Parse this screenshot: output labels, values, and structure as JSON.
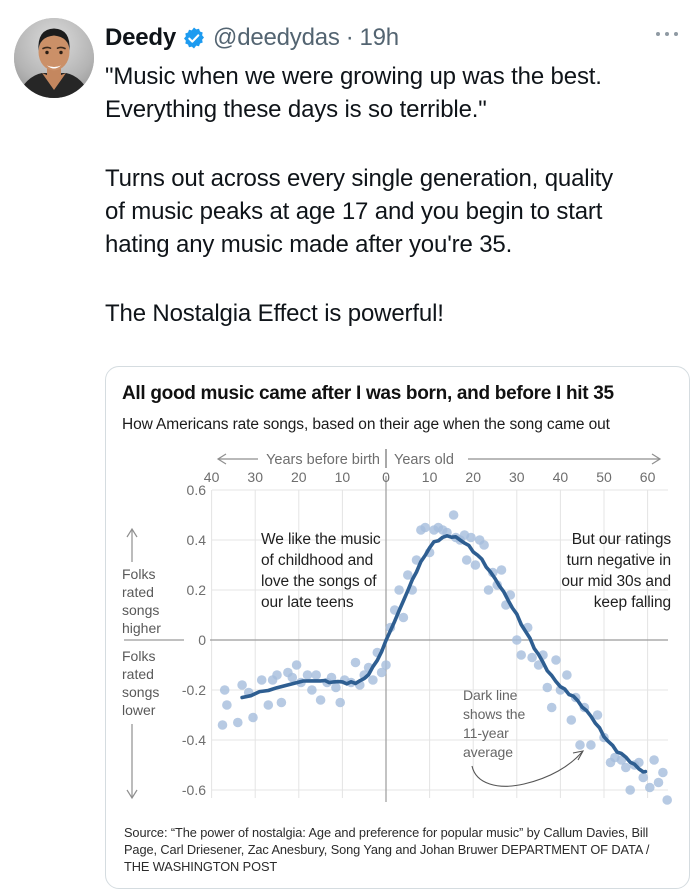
{
  "tweet": {
    "author": "Deedy",
    "handle": "@deedydas",
    "separator": "·",
    "time": "19h",
    "paragraphs": [
      "\"Music when we were growing up was the best.\nEverything these days is so terrible.\"",
      "Turns out across every single generation, quality\nof music peaks at age 17 and you begin to start\nhating any music made after you're 35.",
      "The Nostalgia Effect is powerful!"
    ]
  },
  "icons": {
    "verified": "verified-badge",
    "more": "more-horizontal-dots"
  },
  "colors": {
    "verified_blue": "#1d9bf0",
    "meta_gray": "#536471",
    "card_border": "#d5dce0",
    "dot_blue": "#a5bddc",
    "line_blue": "#2e5e91",
    "grid_gray": "#e4e4e4",
    "axis_gray": "#9b9b9b",
    "tick_text_gray": "#6e6e6e"
  },
  "chart_data": {
    "type": "scatter",
    "title": "All good music came after I was born, and before I hit 35",
    "subtitle": "How Americans rate songs, based on their age when the song came out",
    "x_axis": {
      "left_label": "Years before birth",
      "right_label": "Years old",
      "tick_values": [
        -40,
        -30,
        -20,
        -10,
        0,
        10,
        20,
        30,
        40,
        50,
        60
      ],
      "tick_labels": [
        "40",
        "30",
        "20",
        "10",
        "0",
        "10",
        "20",
        "30",
        "40",
        "50",
        "60"
      ]
    },
    "y_axis": {
      "tick_values": [
        0.6,
        0.4,
        0.2,
        0,
        -0.2,
        -0.4,
        -0.6
      ],
      "tick_labels": [
        "0.6",
        "0.4",
        "0.2",
        "0",
        "-0.2",
        "-0.4",
        "-0.6"
      ]
    },
    "xlim": [
      -45,
      66
    ],
    "ylim": [
      -0.7,
      0.65
    ],
    "grid": true,
    "legend": "none",
    "annotations": {
      "left": "We like the music\nof childhood and\nlove the songs of\nour late teens",
      "right": "But our ratings\nturn negative in\nour mid 30s and\nkeep falling",
      "dark_line": "Dark line\nshows the\n11-year\naverage",
      "folks_higher": "Folks\nrated\nsongs\nhigher",
      "folks_lower": "Folks\nrated\nsongs\nlower"
    },
    "series": [
      {
        "name": "individual year ratings",
        "type": "scatter",
        "points": [
          [
            -37.5,
            -0.34
          ],
          [
            -37,
            -0.2
          ],
          [
            -36.5,
            -0.26
          ],
          [
            -34,
            -0.33
          ],
          [
            -33,
            -0.18
          ],
          [
            -31.5,
            -0.21
          ],
          [
            -30.5,
            -0.31
          ],
          [
            -28.5,
            -0.16
          ],
          [
            -27,
            -0.26
          ],
          [
            -26,
            -0.16
          ],
          [
            -25,
            -0.14
          ],
          [
            -24,
            -0.25
          ],
          [
            -22.5,
            -0.13
          ],
          [
            -21.5,
            -0.15
          ],
          [
            -20.5,
            -0.1
          ],
          [
            -19.5,
            -0.17
          ],
          [
            -18,
            -0.14
          ],
          [
            -17,
            -0.2
          ],
          [
            -16,
            -0.14
          ],
          [
            -15,
            -0.24
          ],
          [
            -13.5,
            -0.17
          ],
          [
            -12.5,
            -0.15
          ],
          [
            -11.5,
            -0.19
          ],
          [
            -10.5,
            -0.25
          ],
          [
            -9.5,
            -0.16
          ],
          [
            -8,
            -0.17
          ],
          [
            -7,
            -0.09
          ],
          [
            -6,
            -0.18
          ],
          [
            -5,
            -0.14
          ],
          [
            -4,
            -0.11
          ],
          [
            -3,
            -0.16
          ],
          [
            -2,
            -0.05
          ],
          [
            -1,
            -0.13
          ],
          [
            0,
            -0.1
          ],
          [
            1,
            0.05
          ],
          [
            2,
            0.12
          ],
          [
            3,
            0.2
          ],
          [
            4,
            0.09
          ],
          [
            5,
            0.26
          ],
          [
            6,
            0.2
          ],
          [
            7,
            0.32
          ],
          [
            8,
            0.44
          ],
          [
            9,
            0.45
          ],
          [
            10,
            0.35
          ],
          [
            11,
            0.44
          ],
          [
            12,
            0.45
          ],
          [
            13,
            0.44
          ],
          [
            14,
            0.43
          ],
          [
            15.5,
            0.5
          ],
          [
            16,
            0.41
          ],
          [
            17,
            0.4
          ],
          [
            18,
            0.42
          ],
          [
            18.5,
            0.32
          ],
          [
            19.5,
            0.41
          ],
          [
            20.5,
            0.3
          ],
          [
            21.5,
            0.4
          ],
          [
            22.5,
            0.38
          ],
          [
            23.5,
            0.2
          ],
          [
            24.5,
            0.27
          ],
          [
            25.5,
            0.22
          ],
          [
            26.5,
            0.28
          ],
          [
            27.5,
            0.14
          ],
          [
            28.5,
            0.18
          ],
          [
            30,
            0.0
          ],
          [
            31,
            -0.06
          ],
          [
            32.5,
            0.05
          ],
          [
            33.5,
            -0.07
          ],
          [
            35,
            -0.1
          ],
          [
            36,
            -0.06
          ],
          [
            37,
            -0.19
          ],
          [
            38,
            -0.27
          ],
          [
            39,
            -0.08
          ],
          [
            40,
            -0.2
          ],
          [
            41.5,
            -0.14
          ],
          [
            42.5,
            -0.32
          ],
          [
            43.5,
            -0.23
          ],
          [
            44.5,
            -0.42
          ],
          [
            45.5,
            -0.27
          ],
          [
            47,
            -0.42
          ],
          [
            48.5,
            -0.3
          ],
          [
            50,
            -0.39
          ],
          [
            51.5,
            -0.49
          ],
          [
            52.5,
            -0.47
          ],
          [
            54,
            -0.48
          ],
          [
            55,
            -0.51
          ],
          [
            56,
            -0.6
          ],
          [
            57,
            -0.5
          ],
          [
            58,
            -0.49
          ],
          [
            59,
            -0.55
          ],
          [
            60.5,
            -0.59
          ],
          [
            61.5,
            -0.48
          ],
          [
            62.5,
            -0.57
          ],
          [
            63.5,
            -0.53
          ],
          [
            64.5,
            -0.64
          ]
        ]
      },
      {
        "name": "11-year average",
        "type": "line",
        "points": [
          [
            -33,
            -0.23
          ],
          [
            -31,
            -0.22
          ],
          [
            -29,
            -0.21
          ],
          [
            -27,
            -0.2
          ],
          [
            -25,
            -0.19
          ],
          [
            -23,
            -0.185
          ],
          [
            -21,
            -0.17
          ],
          [
            -19,
            -0.165
          ],
          [
            -17,
            -0.165
          ],
          [
            -15,
            -0.16
          ],
          [
            -14,
            -0.165
          ],
          [
            -13,
            -0.17
          ],
          [
            -12,
            -0.165
          ],
          [
            -11,
            -0.17
          ],
          [
            -10,
            -0.165
          ],
          [
            -9,
            -0.175
          ],
          [
            -8,
            -0.17
          ],
          [
            -7,
            -0.17
          ],
          [
            -6,
            -0.165
          ],
          [
            -5,
            -0.155
          ],
          [
            -4,
            -0.135
          ],
          [
            -3,
            -0.11
          ],
          [
            -2,
            -0.08
          ],
          [
            -1,
            -0.045
          ],
          [
            0,
            -0.005
          ],
          [
            1,
            0.04
          ],
          [
            2,
            0.075
          ],
          [
            3,
            0.115
          ],
          [
            4,
            0.16
          ],
          [
            5,
            0.195
          ],
          [
            6,
            0.24
          ],
          [
            7,
            0.275
          ],
          [
            8,
            0.31
          ],
          [
            9,
            0.34
          ],
          [
            10,
            0.37
          ],
          [
            11,
            0.39
          ],
          [
            12,
            0.4
          ],
          [
            13,
            0.41
          ],
          [
            14,
            0.415
          ],
          [
            15,
            0.415
          ],
          [
            16,
            0.41
          ],
          [
            17,
            0.4
          ],
          [
            18,
            0.39
          ],
          [
            19,
            0.375
          ],
          [
            20,
            0.355
          ],
          [
            21,
            0.34
          ],
          [
            22,
            0.32
          ],
          [
            23,
            0.295
          ],
          [
            24,
            0.27
          ],
          [
            25,
            0.245
          ],
          [
            26,
            0.22
          ],
          [
            27,
            0.19
          ],
          [
            28,
            0.16
          ],
          [
            29,
            0.13
          ],
          [
            30,
            0.1
          ],
          [
            31,
            0.065
          ],
          [
            32,
            0.035
          ],
          [
            33,
            0.005
          ],
          [
            34,
            -0.03
          ],
          [
            35,
            -0.06
          ],
          [
            36,
            -0.09
          ],
          [
            37,
            -0.12
          ],
          [
            38,
            -0.145
          ],
          [
            39,
            -0.165
          ],
          [
            40,
            -0.185
          ],
          [
            41,
            -0.2
          ],
          [
            42,
            -0.215
          ],
          [
            43,
            -0.225
          ],
          [
            44,
            -0.245
          ],
          [
            45,
            -0.265
          ],
          [
            46,
            -0.285
          ],
          [
            47,
            -0.305
          ],
          [
            48,
            -0.33
          ],
          [
            49,
            -0.355
          ],
          [
            50,
            -0.385
          ],
          [
            51,
            -0.405
          ],
          [
            52,
            -0.425
          ],
          [
            53,
            -0.445
          ],
          [
            54,
            -0.455
          ],
          [
            55,
            -0.47
          ],
          [
            56,
            -0.485
          ],
          [
            57,
            -0.5
          ],
          [
            58,
            -0.515
          ],
          [
            59,
            -0.525
          ],
          [
            59.5,
            -0.53
          ]
        ]
      }
    ],
    "source": "Source: “The power of nostalgia: Age and preference for popular music” by Callum Davies, Bill Page, Carl Driesener, Zac Anesbury, Song Yang and Johan Bruwer DEPARTMENT OF DATA / THE WASHINGTON POST"
  }
}
